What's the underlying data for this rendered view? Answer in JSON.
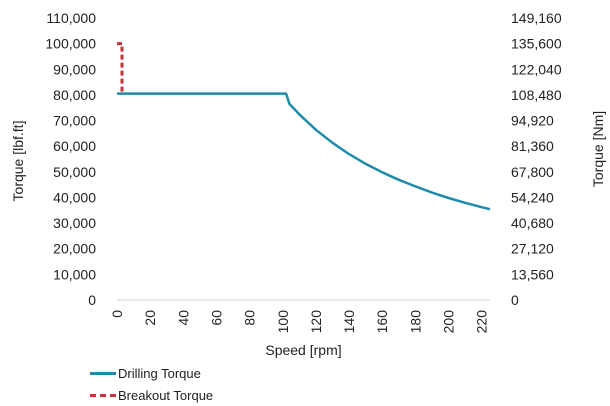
{
  "chart_data": {
    "type": "line",
    "xlabel": "Speed [rpm]",
    "ylabel_left": "Torque [lbf.ft]",
    "ylabel_right": "Torque [Nm]",
    "xlim": [
      0,
      225
    ],
    "ylim_left": [
      0,
      110000
    ],
    "ylim_right": [
      0,
      149160
    ],
    "x_ticks": [
      "0",
      "20",
      "40",
      "60",
      "80",
      "100",
      "120",
      "140",
      "160",
      "180",
      "200",
      "220"
    ],
    "y_ticks_left": [
      "0",
      "10,000",
      "20,000",
      "30,000",
      "40,000",
      "50,000",
      "60,000",
      "70,000",
      "80,000",
      "90,000",
      "100,000",
      "110,000"
    ],
    "y_ticks_right": [
      "0",
      "13,560",
      "27,120",
      "40,680",
      "54,240",
      "67,800",
      "81,360",
      "94,920",
      "108,480",
      "122,040",
      "135,600",
      "149,160"
    ],
    "grid": false,
    "legend_position": "bottom-left",
    "series": [
      {
        "name": "Drilling Torque",
        "color": "#1f8bab",
        "style": "solid",
        "x": [
          0,
          20,
          40,
          60,
          80,
          100,
          102,
          104,
          110,
          120,
          130,
          140,
          150,
          160,
          170,
          180,
          190,
          200,
          210,
          220,
          225
        ],
        "y": [
          80500,
          80500,
          80500,
          80500,
          80500,
          80500,
          80500,
          76500,
          72400,
          66400,
          61300,
          56900,
          53100,
          49800,
          46900,
          44300,
          41900,
          39800,
          37900,
          36200,
          35400
        ]
      },
      {
        "name": "Breakout Torque",
        "color": "#c8333d",
        "style": "dashed",
        "x": [
          0,
          3,
          3
        ],
        "y": [
          100000,
          100000,
          80500
        ]
      }
    ]
  }
}
